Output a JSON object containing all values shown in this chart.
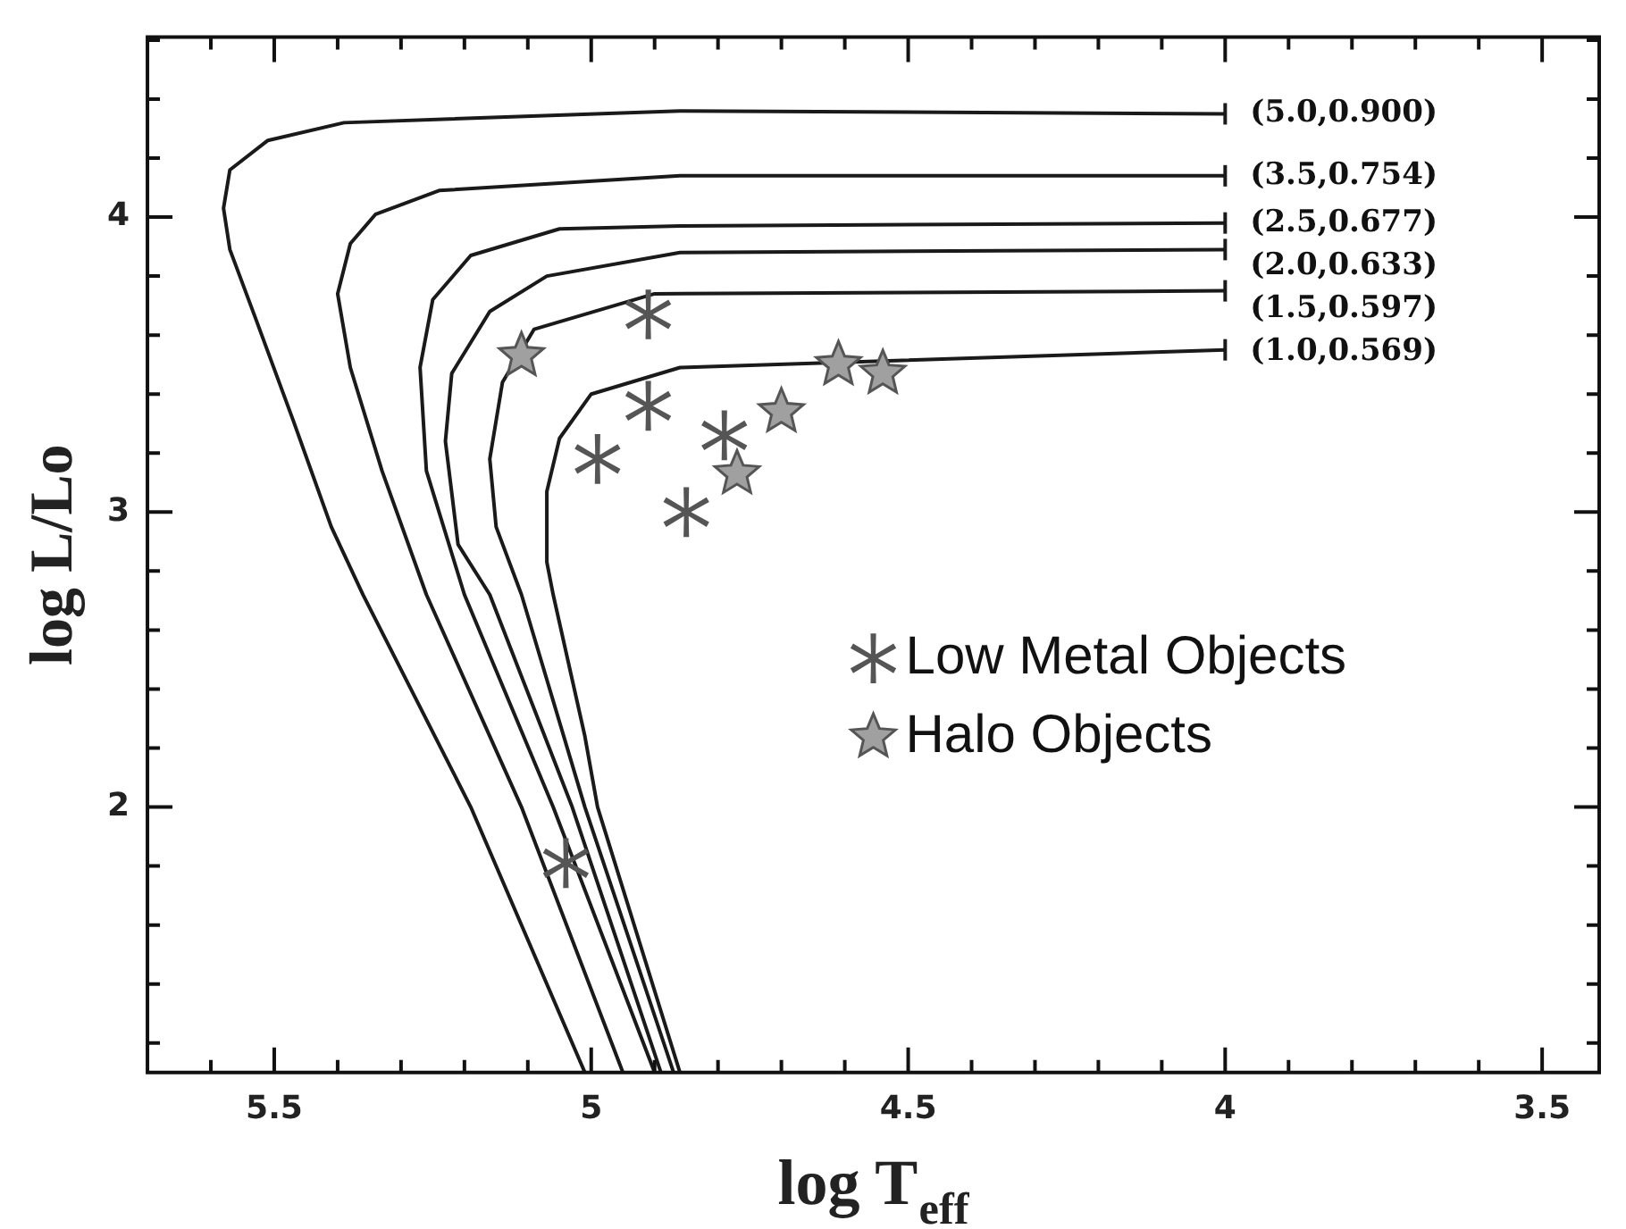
{
  "chart_data": {
    "type": "line",
    "xlabel": "log T$_{eff}$",
    "ylabel": "log L/Lo",
    "xlim": [
      5.7,
      3.41
    ],
    "ylim": [
      1.1,
      4.61
    ],
    "xticks": [
      {
        "value": 5.6,
        "label": null
      },
      5.5,
      {
        "value": 5.4,
        "label": null
      },
      {
        "value": 5.3,
        "label": null
      },
      {
        "value": 5.2,
        "label": null
      },
      {
        "value": 5.1,
        "label": null
      },
      5,
      {
        "value": 4.9,
        "label": null
      },
      {
        "value": 4.8,
        "label": null
      },
      {
        "value": 4.7,
        "label": null
      },
      {
        "value": 4.6,
        "label": null
      },
      4.5,
      {
        "value": 4.4,
        "label": null
      },
      {
        "value": 4.3,
        "label": null
      },
      {
        "value": 4.2,
        "label": null
      },
      {
        "value": 4.1,
        "label": null
      },
      4,
      {
        "value": 3.9,
        "label": null
      },
      {
        "value": 3.8,
        "label": null
      },
      {
        "value": 3.7,
        "label": null
      },
      {
        "value": 3.6,
        "label": null
      },
      3.5
    ],
    "yticks": [
      {
        "value": 1.2,
        "label": null
      },
      {
        "value": 1.4,
        "label": null
      },
      {
        "value": 1.6,
        "label": null
      },
      {
        "value": 1.8,
        "label": null
      },
      2,
      {
        "value": 2.2,
        "label": null
      },
      {
        "value": 2.4,
        "label": null
      },
      {
        "value": 2.6,
        "label": null
      },
      {
        "value": 2.8,
        "label": null
      },
      3,
      {
        "value": 3.2,
        "label": null
      },
      {
        "value": 3.4,
        "label": null
      },
      {
        "value": 3.6,
        "label": null
      },
      {
        "value": 3.8,
        "label": null
      },
      4,
      {
        "value": 4.2,
        "label": null
      },
      {
        "value": 4.4,
        "label": null
      },
      {
        "value": 4.6,
        "label": null
      }
    ],
    "grid": false,
    "legend": "right",
    "series": [
      {
        "name": "(5.0,0.900)",
        "type": "line",
        "color": "#1a1a1a",
        "x": [
          4.0,
          4.86,
          5.39,
          5.51,
          5.57,
          5.58,
          5.57,
          5.53,
          5.47,
          5.41,
          5.36,
          5.19,
          5.01
        ],
        "values": [
          4.35,
          4.36,
          4.32,
          4.26,
          4.16,
          4.03,
          3.89,
          3.66,
          3.31,
          2.95,
          2.72,
          2.0,
          1.1
        ]
      },
      {
        "name": "(3.5,0.754)",
        "type": "line",
        "color": "#1a1a1a",
        "x": [
          4.0,
          4.86,
          5.24,
          5.34,
          5.38,
          5.4,
          5.38,
          5.33,
          5.26,
          5.11,
          4.95
        ],
        "values": [
          4.14,
          4.14,
          4.09,
          4.01,
          3.91,
          3.74,
          3.49,
          3.14,
          2.72,
          2.0,
          1.1
        ]
      },
      {
        "name": "(2.5,0.677)",
        "type": "line",
        "color": "#1a1a1a",
        "x": [
          4.0,
          4.86,
          5.05,
          5.19,
          5.25,
          5.27,
          5.26,
          5.2,
          5.06,
          4.9
        ],
        "values": [
          3.98,
          3.97,
          3.96,
          3.87,
          3.72,
          3.49,
          3.14,
          2.72,
          2.0,
          1.1
        ]
      },
      {
        "name": "(2.0,0.633)",
        "type": "line",
        "color": "#1a1a1a",
        "x": [
          4.0,
          4.86,
          5.07,
          5.16,
          5.22,
          5.23,
          5.21,
          5.16,
          5.03,
          4.89
        ],
        "values": [
          3.89,
          3.88,
          3.8,
          3.68,
          3.47,
          3.24,
          2.89,
          2.72,
          2.0,
          1.1
        ]
      },
      {
        "name": "(1.5,0.597)",
        "type": "line",
        "color": "#1a1a1a",
        "x": [
          4.0,
          4.9,
          5.09,
          5.14,
          5.16,
          5.15,
          5.11,
          5.01,
          4.87
        ],
        "values": [
          3.75,
          3.74,
          3.62,
          3.44,
          3.18,
          2.95,
          2.72,
          2.0,
          1.1
        ]
      },
      {
        "name": "(1.0,0.569)",
        "type": "line",
        "color": "#1a1a1a",
        "x": [
          4.0,
          4.86,
          5.0,
          5.05,
          5.07,
          5.07,
          5.06,
          5.01,
          4.99,
          4.86
        ],
        "values": [
          3.55,
          3.49,
          3.4,
          3.25,
          3.07,
          2.83,
          2.72,
          2.24,
          2.0,
          1.1
        ]
      },
      {
        "name": "Low Metal Objects",
        "type": "scatter",
        "marker": "cross",
        "color": "#555555",
        "x": [
          4.91,
          4.91,
          4.99,
          4.79,
          4.85,
          5.04
        ],
        "values": [
          3.67,
          3.36,
          3.18,
          3.26,
          3.0,
          1.81
        ]
      },
      {
        "name": "Halo Objects",
        "type": "scatter",
        "marker": "star",
        "color": "#a0a0a0",
        "x": [
          5.11,
          4.7,
          4.77,
          4.61,
          4.54
        ],
        "values": [
          3.53,
          3.34,
          3.13,
          3.5,
          3.47
        ]
      }
    ]
  }
}
